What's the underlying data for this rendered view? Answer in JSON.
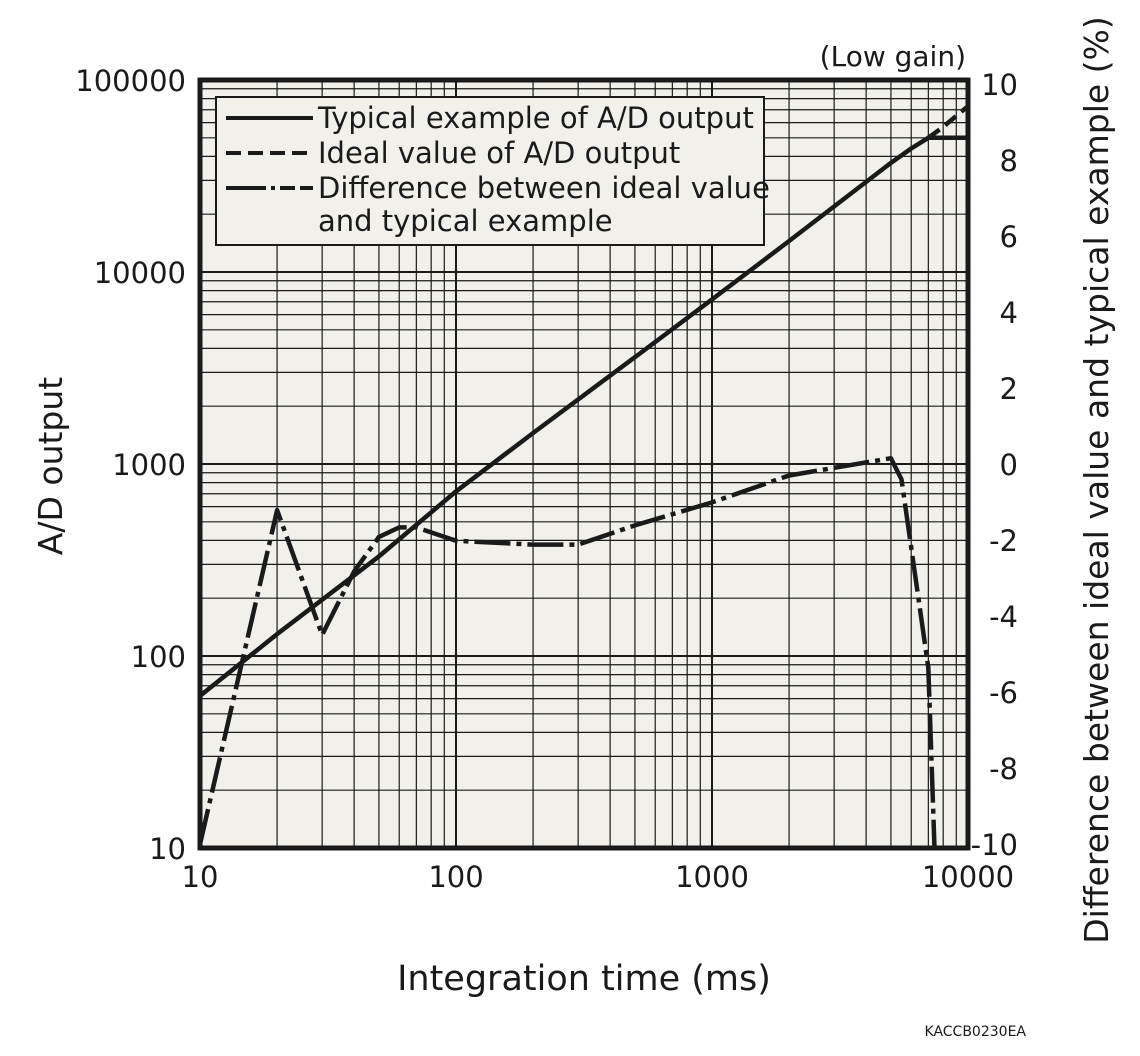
{
  "chart_data": {
    "type": "line",
    "subtitle": "(Low gain)",
    "xlabel": "Integration time (ms)",
    "ylabel": "A/D output",
    "y2label": "Difference between ideal value and typical example (%)",
    "xscale": "log",
    "yscale": "log",
    "y2scale": "linear",
    "xlim": [
      10,
      10000
    ],
    "ylim": [
      10,
      100000
    ],
    "y2lim": [
      -10,
      10
    ],
    "xticks": [
      "10",
      "100",
      "1000",
      "10000"
    ],
    "yticks": [
      "10",
      "100",
      "1000",
      "10000",
      "100000"
    ],
    "y2ticks": [
      "-10",
      "-8",
      "-6",
      "-4",
      "-2",
      "0",
      "2",
      "4",
      "6",
      "8",
      "10"
    ],
    "grid": true,
    "legend_position": "top-left",
    "series": [
      {
        "name": "Typical example of A/D output",
        "style": "solid",
        "axis": "left",
        "x": [
          10,
          20,
          50,
          100,
          200,
          500,
          1000,
          2000,
          5000,
          6000,
          7000,
          10000
        ],
        "y": [
          62,
          130,
          330,
          720,
          1450,
          3600,
          7200,
          14500,
          37000,
          44000,
          50000,
          50000
        ]
      },
      {
        "name": "Ideal value of A/D output",
        "style": "dashed",
        "axis": "left",
        "x": [
          7000,
          8000,
          9000,
          10000
        ],
        "y": [
          50000,
          57000,
          65000,
          73000
        ]
      },
      {
        "name": "Difference between ideal value and typical example",
        "name_line2": "and typical example",
        "name_line1": "Difference between ideal value",
        "style": "dash-dot",
        "axis": "right",
        "x": [
          10,
          20,
          30,
          40,
          50,
          60,
          70,
          100,
          200,
          300,
          500,
          1000,
          2000,
          5000,
          5500,
          7000,
          7400
        ],
        "y": [
          -9.9,
          -1.2,
          -4.45,
          -2.8,
          -1.9,
          -1.65,
          -1.65,
          -2.0,
          -2.1,
          -2.1,
          -1.6,
          -1.0,
          -0.3,
          0.15,
          -0.4,
          -5.3,
          -10
        ]
      }
    ],
    "colors": {
      "line": "#1a1a1a",
      "plot_bg": "#f1f0ea",
      "grid": "#1a1a1a"
    }
  },
  "footer": {
    "code": "KACCB0230EA"
  }
}
